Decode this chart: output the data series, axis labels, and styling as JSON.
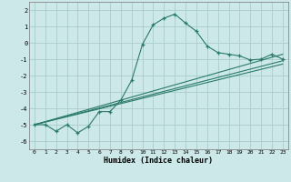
{
  "xlabel": "Humidex (Indice chaleur)",
  "background_color": "#cce8e8",
  "grid_color": "#aacccc",
  "line_color": "#2a7a6a",
  "xlim": [
    -0.5,
    23.5
  ],
  "ylim": [
    -6.5,
    2.5
  ],
  "xticks": [
    0,
    1,
    2,
    3,
    4,
    5,
    6,
    7,
    8,
    9,
    10,
    11,
    12,
    13,
    14,
    15,
    16,
    17,
    18,
    19,
    20,
    21,
    22,
    23
  ],
  "yticks": [
    -6,
    -5,
    -4,
    -3,
    -2,
    -1,
    0,
    1,
    2
  ],
  "curve1_x": [
    0,
    1,
    2,
    3,
    4,
    5,
    6,
    7,
    8,
    9,
    10,
    11,
    12,
    13,
    14,
    15,
    16,
    17,
    18,
    19,
    20,
    21,
    22,
    23
  ],
  "curve1_y": [
    -5.0,
    -5.0,
    -5.4,
    -5.0,
    -5.5,
    -5.1,
    -4.2,
    -4.2,
    -3.5,
    -2.3,
    -0.1,
    1.1,
    1.5,
    1.75,
    1.2,
    0.7,
    -0.2,
    -0.6,
    -0.7,
    -0.8,
    -1.05,
    -1.0,
    -0.7,
    -1.0
  ],
  "line1_x": [
    0,
    23
  ],
  "line1_y": [
    -5.0,
    -0.7
  ],
  "line2_x": [
    0,
    23
  ],
  "line2_y": [
    -5.0,
    -1.1
  ],
  "line3_x": [
    0,
    23
  ],
  "line3_y": [
    -5.0,
    -1.3
  ]
}
